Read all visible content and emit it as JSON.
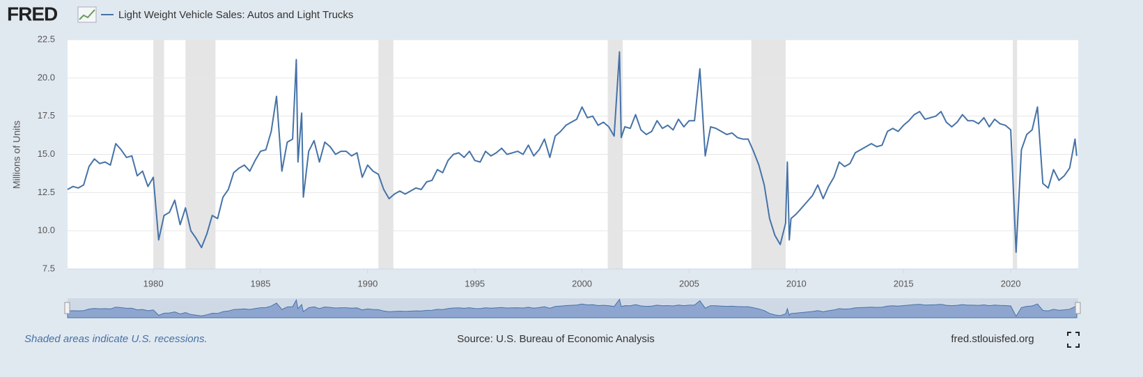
{
  "logo": "FRED",
  "chart_data": {
    "type": "line",
    "note": "Shaded areas indicate U.S. recessions.",
    "source": "Source: U.S. Bureau of Economic Analysis",
    "site": "fred.stlouisfed.org",
    "ylabel": "Millions of Units",
    "x": [
      1976,
      1976.25,
      1976.5,
      1976.75,
      1977,
      1977.25,
      1977.5,
      1977.75,
      1978,
      1978.25,
      1978.5,
      1978.75,
      1979,
      1979.25,
      1979.5,
      1979.75,
      1980,
      1980.25,
      1980.5,
      1980.75,
      1981,
      1981.25,
      1981.5,
      1981.75,
      1982,
      1982.25,
      1982.5,
      1982.75,
      1983,
      1983.25,
      1983.5,
      1983.75,
      1984,
      1984.25,
      1984.5,
      1984.75,
      1985,
      1985.25,
      1985.5,
      1985.75,
      1986,
      1986.25,
      1986.5,
      1986.67,
      1986.75,
      1986.92,
      1987,
      1987.25,
      1987.5,
      1987.75,
      1988,
      1988.25,
      1988.5,
      1988.75,
      1989,
      1989.25,
      1989.5,
      1989.75,
      1990,
      1990.25,
      1990.5,
      1990.75,
      1991,
      1991.25,
      1991.5,
      1991.75,
      1992,
      1992.25,
      1992.5,
      1992.75,
      1993,
      1993.25,
      1993.5,
      1993.75,
      1994,
      1994.25,
      1994.5,
      1994.75,
      1995,
      1995.25,
      1995.5,
      1995.75,
      1996,
      1996.25,
      1996.5,
      1996.75,
      1997,
      1997.25,
      1997.5,
      1997.75,
      1998,
      1998.25,
      1998.5,
      1998.75,
      1999,
      1999.25,
      1999.5,
      1999.75,
      2000,
      2000.25,
      2000.5,
      2000.75,
      2001,
      2001.25,
      2001.5,
      2001.75,
      2001.83,
      2002,
      2002.25,
      2002.5,
      2002.75,
      2003,
      2003.25,
      2003.5,
      2003.75,
      2004,
      2004.25,
      2004.5,
      2004.75,
      2005,
      2005.25,
      2005.5,
      2005.75,
      2006,
      2006.25,
      2006.5,
      2006.75,
      2007,
      2007.25,
      2007.5,
      2007.75,
      2008,
      2008.25,
      2008.5,
      2008.75,
      2009,
      2009.25,
      2009.5,
      2009.58,
      2009.67,
      2009.75,
      2010,
      2010.25,
      2010.5,
      2010.75,
      2011,
      2011.25,
      2011.5,
      2011.75,
      2012,
      2012.25,
      2012.5,
      2012.75,
      2013,
      2013.25,
      2013.5,
      2013.75,
      2014,
      2014.25,
      2014.5,
      2014.75,
      2015,
      2015.25,
      2015.5,
      2015.75,
      2016,
      2016.25,
      2016.5,
      2016.75,
      2017,
      2017.25,
      2017.5,
      2017.75,
      2018,
      2018.25,
      2018.5,
      2018.75,
      2019,
      2019.25,
      2019.5,
      2019.75,
      2020,
      2020.25,
      2020.5,
      2020.75,
      2021,
      2021.25,
      2021.5,
      2021.75,
      2022,
      2022.25,
      2022.5,
      2022.75,
      2023,
      2023.08
    ],
    "series": [
      {
        "name": "Light Weight Vehicle Sales: Autos and Light Trucks",
        "color": "#4572a7",
        "values": [
          12.7,
          12.9,
          12.8,
          13.0,
          14.2,
          14.7,
          14.4,
          14.5,
          14.3,
          15.7,
          15.3,
          14.8,
          14.9,
          13.6,
          13.9,
          12.9,
          13.5,
          9.4,
          11.0,
          11.2,
          12.0,
          10.4,
          11.5,
          10.0,
          9.5,
          8.9,
          9.8,
          11.0,
          10.8,
          12.2,
          12.7,
          13.8,
          14.1,
          14.3,
          13.9,
          14.6,
          15.2,
          15.3,
          16.5,
          18.8,
          13.9,
          15.8,
          16.0,
          21.2,
          14.5,
          17.7,
          12.2,
          15.2,
          15.9,
          14.5,
          15.8,
          15.5,
          15.0,
          15.2,
          15.2,
          14.9,
          15.1,
          13.5,
          14.3,
          13.9,
          13.7,
          12.7,
          12.1,
          12.4,
          12.6,
          12.4,
          12.6,
          12.8,
          12.7,
          13.2,
          13.3,
          14.0,
          13.8,
          14.6,
          15.0,
          15.1,
          14.8,
          15.2,
          14.6,
          14.5,
          15.2,
          14.9,
          15.1,
          15.4,
          15.0,
          15.1,
          15.2,
          15.0,
          15.6,
          14.9,
          15.3,
          16.0,
          14.8,
          16.2,
          16.5,
          16.9,
          17.1,
          17.3,
          18.1,
          17.4,
          17.5,
          16.9,
          17.1,
          16.8,
          16.2,
          21.7,
          16.1,
          16.8,
          16.7,
          17.6,
          16.6,
          16.3,
          16.5,
          17.2,
          16.7,
          16.9,
          16.6,
          17.3,
          16.8,
          17.2,
          17.2,
          20.6,
          14.9,
          16.8,
          16.7,
          16.5,
          16.3,
          16.4,
          16.1,
          16.0,
          16.0,
          15.2,
          14.3,
          13.0,
          10.8,
          9.7,
          9.1,
          10.5,
          14.5,
          9.4,
          10.8,
          11.1,
          11.5,
          11.9,
          12.3,
          13.0,
          12.1,
          12.9,
          13.5,
          14.5,
          14.2,
          14.4,
          15.1,
          15.3,
          15.5,
          15.7,
          15.5,
          15.6,
          16.5,
          16.7,
          16.5,
          16.9,
          17.2,
          17.6,
          17.8,
          17.3,
          17.4,
          17.5,
          17.8,
          17.1,
          16.8,
          17.1,
          17.6,
          17.2,
          17.2,
          17.0,
          17.4,
          16.8,
          17.3,
          17.0,
          16.9,
          16.6,
          8.6,
          15.3,
          16.3,
          16.6,
          18.1,
          13.1,
          12.8,
          14.0,
          13.3,
          13.6,
          14.1,
          16.0,
          14.9
        ]
      }
    ],
    "recessions": [
      [
        1980.0,
        1980.5
      ],
      [
        1981.5,
        1982.9
      ],
      [
        1990.5,
        1991.2
      ],
      [
        2001.2,
        2001.9
      ],
      [
        2007.9,
        2009.5
      ],
      [
        2020.1,
        2020.3
      ]
    ],
    "xlim": [
      1976,
      2023.15
    ],
    "xticks": [
      1980,
      1985,
      1990,
      1995,
      2000,
      2005,
      2010,
      2015,
      2020
    ],
    "ylim": [
      7.5,
      22.5
    ],
    "yticks": [
      7.5,
      {
        "value": 10,
        "label": "10.0"
      },
      12.5,
      {
        "value": 15,
        "label": "15.0"
      },
      17.5,
      {
        "value": 20,
        "label": "20.0"
      },
      22.5
    ],
    "grid": true
  }
}
